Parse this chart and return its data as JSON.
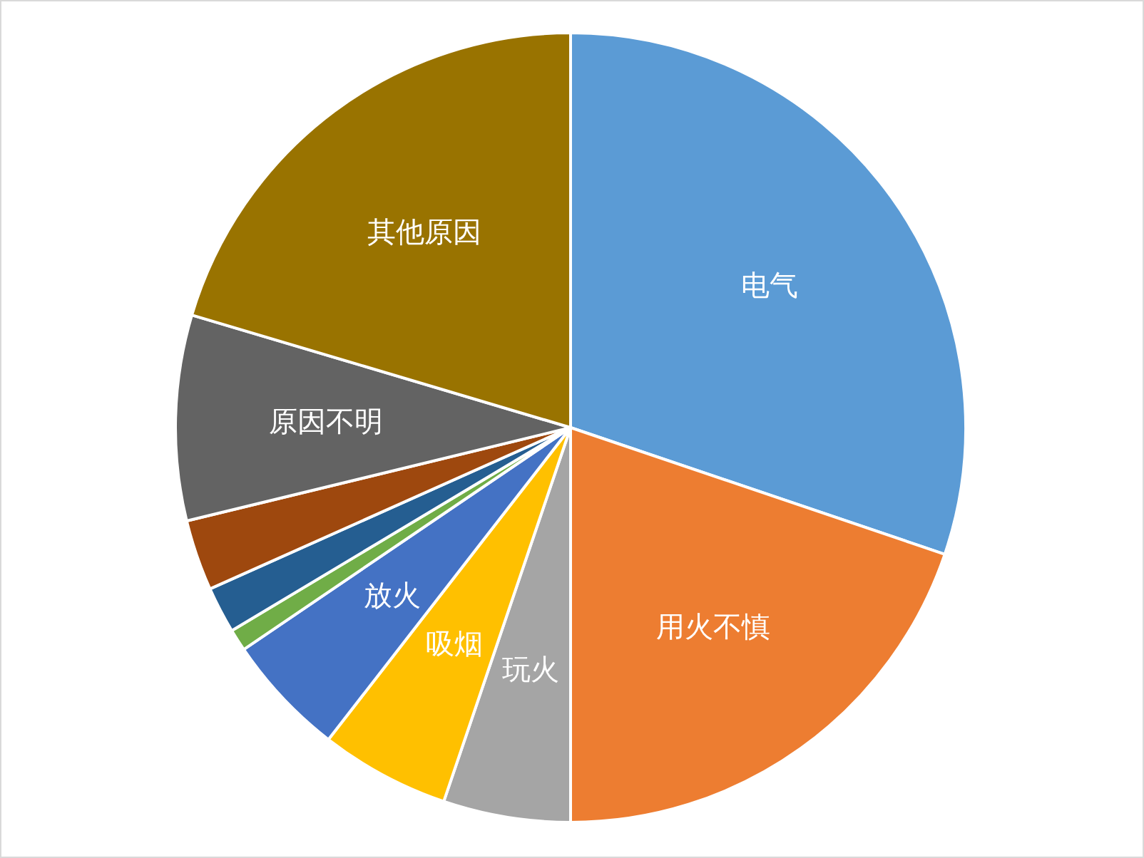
{
  "chart_data": {
    "type": "pie",
    "categories": [
      "电气",
      "用火不慎",
      "玩火",
      "吸烟",
      "放火",
      null,
      null,
      null,
      "原因不明",
      "其他原因"
    ],
    "values": [
      30.2,
      19.8,
      5.2,
      5.3,
      5.0,
      0.9,
      1.9,
      2.9,
      8.4,
      20.4
    ],
    "colors": [
      "#5b9bd5",
      "#ed7d31",
      "#a5a5a5",
      "#ffc000",
      "#4472c4",
      "#70ad47",
      "#255e91",
      "#9e480e",
      "#636363",
      "#997300"
    ],
    "legend": false
  }
}
